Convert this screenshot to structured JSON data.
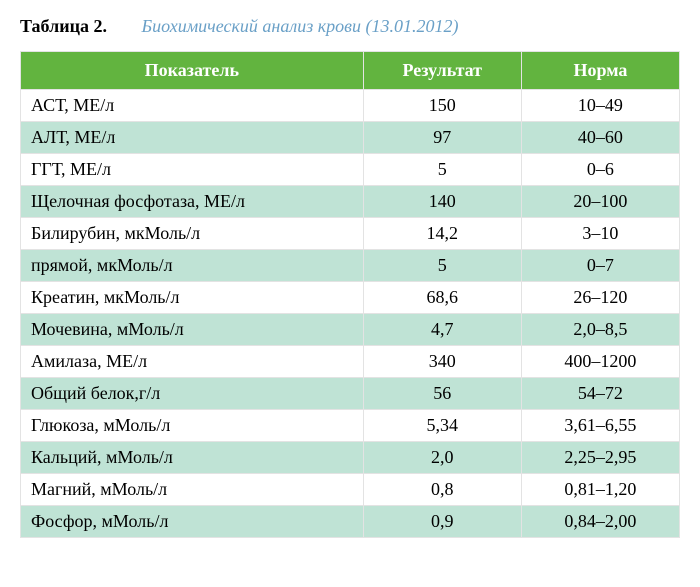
{
  "caption": {
    "label": "Таблица 2.",
    "title": "Биохимический анализ крови (13.01.2012)"
  },
  "table": {
    "columns": [
      "Показатель",
      "Результат",
      "Норма"
    ],
    "header_bg": "#62b43f",
    "header_fg": "#ffffff",
    "row_alt_bg": "#bfe3d5",
    "row_bg": "#ffffff",
    "border_color": "#e3e3e3",
    "rows": [
      {
        "param": "АСТ, МЕ/л",
        "result": "150",
        "norm": "10–49",
        "alt": false
      },
      {
        "param": "АЛТ, МЕ/л",
        "result": "97",
        "norm": "40–60",
        "alt": true
      },
      {
        "param": "ГГТ, МЕ/л",
        "result": "5",
        "norm": "0–6",
        "alt": false
      },
      {
        "param": "Щелочная фосфотаза, МЕ/л",
        "result": "140",
        "norm": "20–100",
        "alt": true
      },
      {
        "param": "Билирубин, мкМоль/л",
        "result": "14,2",
        "norm": "3–10",
        "alt": false
      },
      {
        "param": "прямой, мкМоль/л",
        "result": "5",
        "norm": "0–7",
        "alt": true
      },
      {
        "param": "Креатин, мкМоль/л",
        "result": "68,6",
        "norm": "26–120",
        "alt": false
      },
      {
        "param": "Мочевина, мМоль/л",
        "result": "4,7",
        "norm": "2,0–8,5",
        "alt": true
      },
      {
        "param": "Амилаза, МЕ/л",
        "result": "340",
        "norm": "400–1200",
        "alt": false
      },
      {
        "param": "Общий белок,г/л",
        "result": "56",
        "norm": "54–72",
        "alt": true
      },
      {
        "param": "Глюкоза, мМоль/л",
        "result": "5,34",
        "norm": "3,61–6,55",
        "alt": false
      },
      {
        "param": "Кальций, мМоль/л",
        "result": "2,0",
        "norm": "2,25–2,95",
        "alt": true
      },
      {
        "param": "Магний, мМоль/л",
        "result": "0,8",
        "norm": "0,81–1,20",
        "alt": false
      },
      {
        "param": "Фосфор, мМоль/л",
        "result": "0,9",
        "norm": "0,84–2,00",
        "alt": true
      }
    ]
  }
}
